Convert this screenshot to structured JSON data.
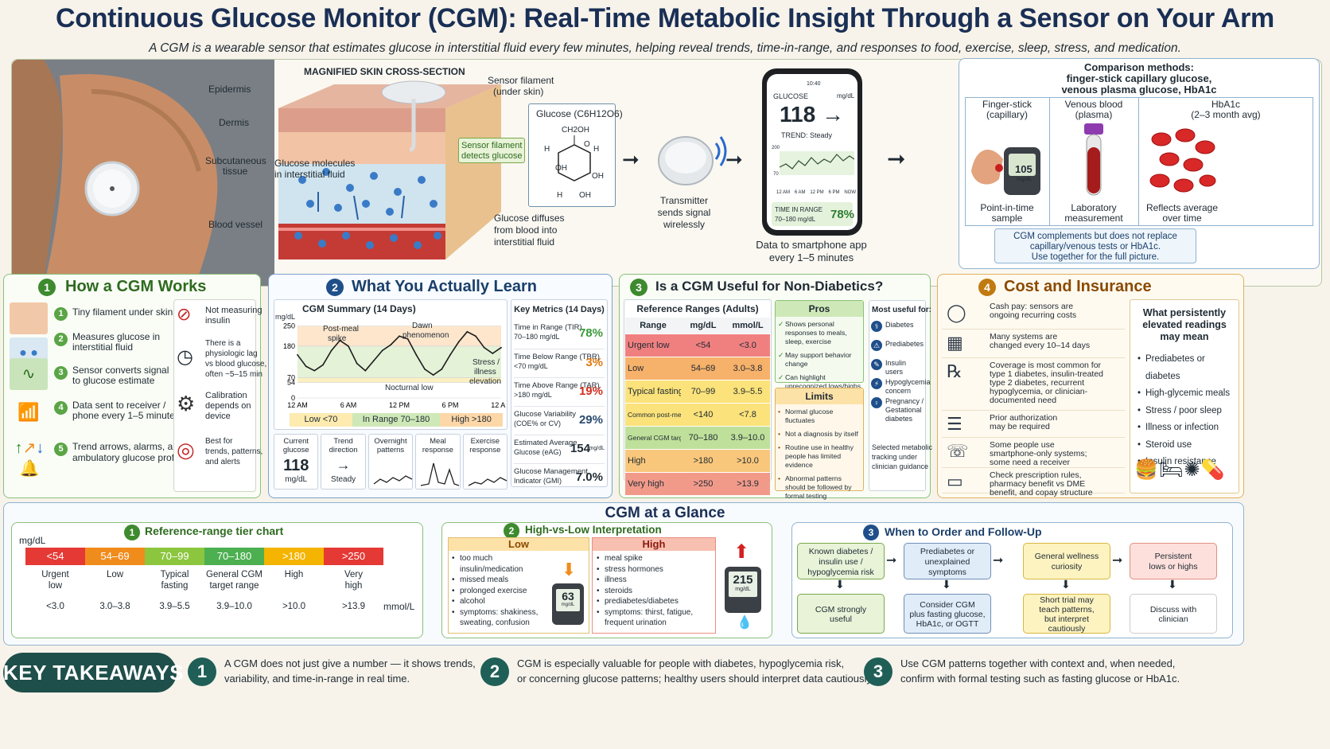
{
  "header": {
    "title": "Continuous Glucose Monitor (CGM): Real-Time Metabolic Insight Through a Sensor on Your Arm",
    "subtitle": "A CGM is a wearable sensor that estimates glucose in interstitial fluid every few minutes, helping reveal trends, time-in-range, and responses to food, exercise, sleep, stress, and medication."
  },
  "skin": {
    "title": "MAGNIFIED SKIN CROSS-SECTION",
    "epidermis": "Epidermis",
    "dermis": "Dermis",
    "subq1": "Subcutaneous",
    "subq2": "tissue",
    "vessel": "Blood vessel",
    "glucose_mol1": "Glucose molecules",
    "glucose_mol2": "in interstitial fluid",
    "filament1": "Sensor filament",
    "filament2": "(under skin)",
    "detects1": "Sensor filament",
    "detects2": "detects glucose",
    "diffuse1": "Glucose diffuses",
    "diffuse2": "from blood into",
    "diffuse3": "interstitial fluid"
  },
  "molecule": {
    "title": "Glucose (C6H12O6)",
    "ch2oh": "CH2OH",
    "o": "O",
    "h": "H",
    "oh": "OH"
  },
  "transmitter": {
    "l1": "Transmitter",
    "l2": "sends signal",
    "l3": "wirelessly"
  },
  "phone": {
    "time": "10:40",
    "label": "GLUCOSE",
    "unit": "mg/dL",
    "value": "118 →",
    "trend": "TREND: Steady",
    "y200": "200",
    "y70": "70",
    "x_ticks": [
      "12 AM",
      "6 AM",
      "12 PM",
      "6 PM",
      "NOW"
    ],
    "tir_label": "TIME IN RANGE",
    "tir_range": "70–180 mg/dL",
    "tir_val": "78%",
    "cap1": "Data to smartphone app",
    "cap2": "every 1–5 minutes"
  },
  "comparison": {
    "title1": "Comparison methods:",
    "title2": "finger-stick capillary glucose,",
    "title3": "venous plasma glucose, HbA1c",
    "cols": [
      {
        "h1": "Finger-stick",
        "h2": "(capillary)",
        "f1": "Point-in-time",
        "f2": "sample",
        "meter_val": "105",
        "meter_unit": "mg/dL"
      },
      {
        "h1": "Venous blood",
        "h2": "(plasma)",
        "f1": "Laboratory",
        "f2": "measurement"
      },
      {
        "h1": "HbA1c",
        "h2": "(2–3 month avg)",
        "f1": "Reflects average",
        "f2": "over time"
      }
    ],
    "note1": "CGM complements but does not replace",
    "note2": "capillary/venous tests or HbA1c.",
    "note3": "Use together for the full picture."
  },
  "s1": {
    "num": "1",
    "title": "How a CGM Works",
    "steps": [
      {
        "n": "1",
        "l1": "Tiny filament under skin",
        "l2": ""
      },
      {
        "n": "2",
        "l1": "Measures glucose in",
        "l2": "interstitial fluid"
      },
      {
        "n": "3",
        "l1": "Sensor converts signal",
        "l2": "to glucose estimate"
      },
      {
        "n": "4",
        "l1": "Data sent to receiver /",
        "l2": "phone every 1–5 minutes"
      },
      {
        "n": "5",
        "l1": "Trend arrows, alarms, and",
        "l2": "ambulatory glucose profile"
      }
    ],
    "notes": [
      {
        "l1": "Not measuring",
        "l2": "insulin",
        "l3": ""
      },
      {
        "l1": "There is a",
        "l2": "physiologic lag",
        "l3": "vs blood glucose,",
        "l4": "often ~5–15 min"
      },
      {
        "l1": "Calibration",
        "l2": "depends on",
        "l3": "device"
      },
      {
        "l1": "Best for",
        "l2": "trends, patterns,",
        "l3": "and alerts"
      }
    ]
  },
  "s2": {
    "num": "2",
    "title": "What You Actually Learn",
    "chart_title": "CGM Summary (14 Days)",
    "ylabel": "mg/dL",
    "ann_post": "Post-meal",
    "ann_spike": "spike",
    "ann_dawn1": "Dawn",
    "ann_dawn2": "phenomenon",
    "ann_stress1": "Stress /",
    "ann_stress2": "illness",
    "ann_stress3": "elevation",
    "ann_noct": "Nocturnal low",
    "legend_low": "Low <70",
    "legend_in": "In Range 70–180",
    "legend_high": "High >180",
    "metrics_title": "Key Metrics (14 Days)",
    "metrics": [
      {
        "l1": "Time in Range (TIR)",
        "l2": "70–180 mg/dL",
        "v": "78%",
        "c": "#3a9a3a"
      },
      {
        "l1": "Time Below Range (TBR)",
        "l2": "<70 mg/dL",
        "v": "3%",
        "c": "#e07a10"
      },
      {
        "l1": "Time Above Range (TAR)",
        "l2": ">180 mg/dL",
        "v": "19%",
        "c": "#d03020"
      },
      {
        "l1": "Glucose Variability",
        "l2": "(COE% or CV)",
        "v": "29%",
        "c": "#2a4a70"
      },
      {
        "l1": "Estimated Average",
        "l2": "Glucose (eAG)",
        "v": "154",
        "c": "#1f2a33",
        "u": "mg/dL"
      },
      {
        "l1": "Glucose Management",
        "l2": "Indicator (GMI)",
        "v": "7.0%",
        "c": "#1f2a33"
      }
    ],
    "tiles": [
      {
        "h1": "Current",
        "h2": "glucose",
        "v": "118",
        "s": "mg/dL"
      },
      {
        "h1": "Trend",
        "h2": "direction",
        "v": "→",
        "s": "Steady"
      },
      {
        "h1": "Overnight",
        "h2": "patterns"
      },
      {
        "h1": "Meal",
        "h2": "response"
      },
      {
        "h1": "Exercise",
        "h2": "response"
      }
    ]
  },
  "s3": {
    "num": "3",
    "title": "Is a CGM Useful for Non-Diabetics?",
    "table_title": "Reference Ranges (Adults)",
    "cols": [
      "Range",
      "mg/dL",
      "mmol/L"
    ],
    "rows": [
      {
        "r": "Urgent low",
        "a": "<54",
        "b": "<3.0",
        "c": "#f08080"
      },
      {
        "r": "Low",
        "a": "54–69",
        "b": "3.0–3.8",
        "c": "#f6b16a"
      },
      {
        "r": "Typical fasting",
        "a": "70–99",
        "b": "3.9–5.5",
        "c": "#fbe27a"
      },
      {
        "r": "Common post-meal goal",
        "a": "<140",
        "b": "<7.8",
        "c": "#fbe27a"
      },
      {
        "r": "General CGM target range",
        "a": "70–180",
        "b": "3.9–10.0",
        "c": "#bfe09a"
      },
      {
        "r": "High",
        "a": ">180",
        "b": ">10.0",
        "c": "#f9c77b"
      },
      {
        "r": "Very high",
        "a": ">250",
        "b": ">13.9",
        "c": "#f29a8a"
      }
    ],
    "pros_title": "Pros",
    "pros": [
      "Shows personal responses to meals, sleep, exercise",
      "May support behavior change",
      "Can highlight unrecognized lows/highs in select people"
    ],
    "limits_title": "Limits",
    "limits": [
      "Normal glucose fluctuates",
      "Not a diagnosis by itself",
      "Routine use in healthy people has limited evidence",
      "Abnormal patterns should be followed by formal testing"
    ],
    "useful_title": "Most useful for:",
    "useful": [
      "Diabetes",
      "Prediabetes",
      "Insulin users",
      "Hypoglycemia concern",
      "Pregnancy / Gestational diabetes"
    ],
    "useful_note1": "Selected metabolic",
    "useful_note2": "tracking under",
    "useful_note3": "clinician guidance"
  },
  "s4": {
    "num": "4",
    "title": "Cost and Insurance",
    "items": [
      {
        "l1": "Cash pay: sensors are",
        "l2": "ongoing recurring costs"
      },
      {
        "l1": "Many systems are",
        "l2": "changed every 10–14 days"
      },
      {
        "l1": "Coverage is most common for",
        "l2": "type 1 diabetes, insulin-treated",
        "l3": "type 2 diabetes, recurrent",
        "l4": "hypoglycemia, or clinician-",
        "l5": "documented need"
      },
      {
        "l1": "Prior authorization",
        "l2": "may be required"
      },
      {
        "l1": "Some people use",
        "l2": "smartphone-only systems;",
        "l3": "some need a receiver"
      },
      {
        "l1": "Check prescription rules,",
        "l2": "pharmacy benefit vs DME",
        "l3": "benefit, and copay structure"
      }
    ],
    "side_title1": "What persistently",
    "side_title2": "elevated readings",
    "side_title3": "may mean",
    "side": [
      "Prediabetes or diabetes",
      "High-glycemic meals",
      "Stress / poor sleep",
      "Illness or infection",
      "Steroid use",
      "Insulin resistance"
    ]
  },
  "glance": {
    "title": "CGM at a Glance",
    "p1_num": "1",
    "p1_title": "Reference-range tier chart",
    "unit_mg": "mg/dL",
    "unit_mmol": "mmol/L",
    "tiers": [
      {
        "mg": "<54",
        "name1": "Urgent",
        "name2": "low",
        "mmol": "<3.0",
        "c": "#e53935"
      },
      {
        "mg": "54–69",
        "name1": "Low",
        "name2": "",
        "mmol": "3.0–3.8",
        "c": "#f08c1c"
      },
      {
        "mg": "70–99",
        "name1": "Typical",
        "name2": "fasting",
        "mmol": "3.9–5.5",
        "c": "#8cc63f"
      },
      {
        "mg": "70–180",
        "name1": "General CGM",
        "name2": "target range",
        "mmol": "3.9–10.0",
        "c": "#4caf50"
      },
      {
        "mg": ">180",
        "name1": "High",
        "name2": "",
        "mmol": ">10.0",
        "c": "#f4b400"
      },
      {
        "mg": ">250",
        "name1": "Very",
        "name2": "high",
        "mmol": ">13.9",
        "c": "#e53935"
      }
    ],
    "p2_num": "2",
    "p2_title": "High-vs-Low Interpretation",
    "low_title": "Low",
    "low_items": [
      "too much insulin/medication",
      "missed meals",
      "prolonged exercise",
      "alcohol",
      "symptoms: shakiness, sweating, confusion"
    ],
    "high_title": "High",
    "high_items": [
      "meal spike",
      "stress hormones",
      "illness",
      "steroids",
      "prediabetes/diabetes",
      "symptoms: thirst, fatigue, frequent urination"
    ],
    "low_meter": "63",
    "high_meter": "215",
    "meter_unit": "mg/dL",
    "p3_num": "3",
    "p3_title": "When to Order and Follow-Up",
    "flow": [
      {
        "top1": "Known diabetes /",
        "top2": "insulin use /",
        "top3": "hypoglycemia risk",
        "bot1": "CGM strongly",
        "bot2": "useful",
        "bot3": ""
      },
      {
        "top1": "Prediabetes or",
        "top2": "unexplained",
        "top3": "symptoms",
        "bot1": "Consider CGM",
        "bot2": "plus fasting glucose,",
        "bot3": "HbA1c, or OGTT"
      },
      {
        "top1": "General wellness",
        "top2": "curiosity",
        "top3": "",
        "bot1": "Short trial may",
        "bot2": "teach patterns,",
        "bot3": "but interpret",
        "bot4": "cautiously"
      },
      {
        "top1": "Persistent",
        "top2": "lows or highs",
        "top3": "",
        "bot1": "Discuss with",
        "bot2": "clinician",
        "bot3": ""
      }
    ]
  },
  "takeaways": {
    "label": "KEY TAKEAWAYS",
    "items": [
      {
        "n": "1",
        "l1": "A CGM does not just give a number — it shows trends,",
        "l2": "variability, and time-in-range in real time."
      },
      {
        "n": "2",
        "l1": "CGM is especially valuable for people with diabetes, hypoglycemia risk,",
        "l2": "or concerning glucose patterns; healthy users should interpret data cautiously."
      },
      {
        "n": "3",
        "l1": "Use CGM patterns together with context and, when needed,",
        "l2": "confirm with formal testing such as fasting glucose or HbA1c."
      }
    ]
  },
  "chart_data": {
    "type": "line",
    "title": "CGM Summary (14 Days)",
    "ylabel": "mg/dL",
    "yticks": [
      0,
      54,
      70,
      180,
      250
    ],
    "ylim": [
      0,
      260
    ],
    "xticks": [
      "12 AM",
      "6 AM",
      "12 PM",
      "6 PM",
      "12 AM"
    ],
    "x_hours": [
      0,
      1,
      2,
      3,
      4,
      5,
      6,
      7,
      8,
      9,
      10,
      11,
      12,
      13,
      14,
      15,
      16,
      17,
      18,
      19,
      20,
      21,
      22,
      23,
      24
    ],
    "values": [
      150,
      110,
      95,
      115,
      165,
      200,
      180,
      120,
      95,
      130,
      165,
      185,
      215,
      205,
      150,
      100,
      80,
      100,
      150,
      195,
      230,
      215,
      175,
      155,
      175
    ]
  }
}
